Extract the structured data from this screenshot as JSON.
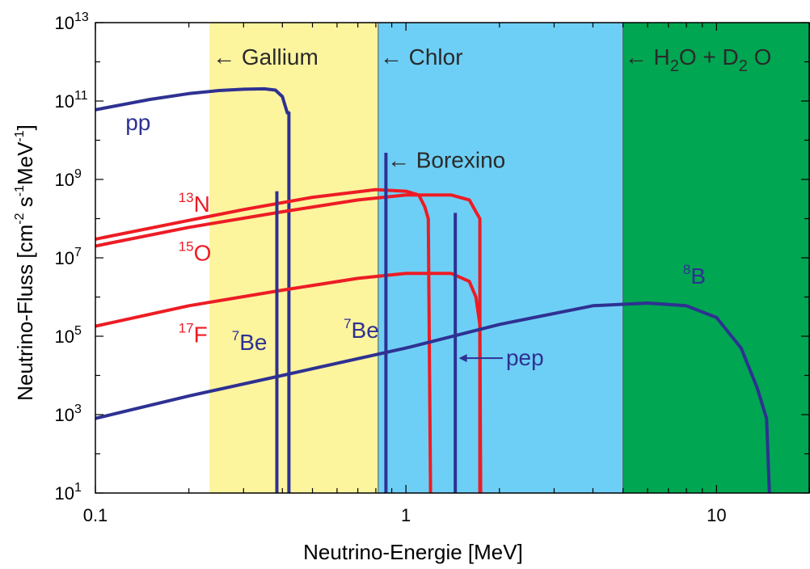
{
  "chart_data": {
    "type": "line",
    "title": "",
    "xlabel": "Neutrino-Energie [MeV]",
    "ylabel": {
      "base": "Neutrino-Fluss [cm",
      "e1": "-2",
      "s": " s",
      "e2": "-1",
      "mev": "MeV",
      "e3": "-1",
      "close": "]"
    },
    "x_scale": "log",
    "y_scale": "log",
    "xlim": [
      0.1,
      20
    ],
    "ylim": [
      10,
      10000000000000.0
    ],
    "x_ticks": [
      {
        "value": 0.1,
        "label": "0.1"
      },
      {
        "value": 1,
        "label": "1"
      },
      {
        "value": 10,
        "label": "10"
      }
    ],
    "y_ticks": [
      {
        "value": 10,
        "label": "10",
        "exp": "1"
      },
      {
        "value": 1000,
        "label": "10",
        "exp": "3"
      },
      {
        "value": 100000,
        "label": "10",
        "exp": "5"
      },
      {
        "value": 10000000,
        "label": "10",
        "exp": "7"
      },
      {
        "value": 1000000000,
        "label": "10",
        "exp": "9"
      },
      {
        "value": 100000000000,
        "label": "10",
        "exp": "11"
      },
      {
        "value": 10000000000000,
        "label": "10",
        "exp": "13"
      }
    ],
    "grid": false,
    "regions": [
      {
        "label": "← Gallium",
        "x_start": 0.233,
        "x_end": 0.814,
        "color": "#fdf49e"
      },
      {
        "label": "← Chlor",
        "x_start": 0.814,
        "x_end": 5.0,
        "color": "#6ecff6"
      },
      {
        "label": {
          "a": "← H",
          "s1": "2",
          "b": "O  + D",
          "s2": "2",
          "c": " O"
        },
        "x_start": 5.0,
        "x_end": 20,
        "color": "#00a651"
      }
    ],
    "series": [
      {
        "name": "pp",
        "color": "#2e3192",
        "points": [
          [
            0.1,
            60000000000.0
          ],
          [
            0.15,
            110000000000.0
          ],
          [
            0.2,
            155000000000.0
          ],
          [
            0.25,
            185000000000.0
          ],
          [
            0.3,
            200000000000.0
          ],
          [
            0.35,
            205000000000.0
          ],
          [
            0.38,
            190000000000.0
          ],
          [
            0.4,
            130000000000.0
          ],
          [
            0.415,
            50000000000.0
          ],
          [
            0.42,
            50000000000.0
          ],
          [
            0.42,
            10
          ]
        ]
      },
      {
        "name": "13N",
        "color": "#ed1c24",
        "points": [
          [
            0.1,
            30000000.0
          ],
          [
            0.2,
            90000000.0
          ],
          [
            0.3,
            170000000.0
          ],
          [
            0.5,
            350000000.0
          ],
          [
            0.8,
            550000000.0
          ],
          [
            1.0,
            500000000.0
          ],
          [
            1.1,
            400000000.0
          ],
          [
            1.15,
            200000000.0
          ],
          [
            1.18,
            100000000.0
          ],
          [
            1.2,
            10
          ]
        ]
      },
      {
        "name": "15O",
        "color": "#ed1c24",
        "points": [
          [
            0.1,
            20000000.0
          ],
          [
            0.2,
            60000000.0
          ],
          [
            0.4,
            150000000.0
          ],
          [
            0.7,
            300000000.0
          ],
          [
            1.0,
            400000000.0
          ],
          [
            1.4,
            400000000.0
          ],
          [
            1.6,
            300000000.0
          ],
          [
            1.68,
            150000000.0
          ],
          [
            1.73,
            100000000.0
          ],
          [
            1.73,
            10
          ]
        ]
      },
      {
        "name": "17F",
        "color": "#ed1c24",
        "points": [
          [
            0.1,
            180000.0
          ],
          [
            0.2,
            600000.0
          ],
          [
            0.4,
            1500000.0
          ],
          [
            0.7,
            3000000.0
          ],
          [
            1.0,
            4000000.0
          ],
          [
            1.4,
            4000000.0
          ],
          [
            1.6,
            2500000.0
          ],
          [
            1.68,
            1000000.0
          ],
          [
            1.73,
            200000.0
          ],
          [
            1.74,
            10
          ]
        ]
      },
      {
        "name": "8B",
        "color": "#2e3192",
        "points": [
          [
            0.1,
            800
          ],
          [
            0.2,
            3000
          ],
          [
            0.4,
            10000.0
          ],
          [
            1,
            50000.0
          ],
          [
            2,
            200000.0
          ],
          [
            4,
            600000.0
          ],
          [
            6,
            700000.0
          ],
          [
            8,
            600000.0
          ],
          [
            10,
            300000.0
          ],
          [
            12,
            50000.0
          ],
          [
            13.5,
            5000.0
          ],
          [
            14.5,
            800
          ],
          [
            14.8,
            10
          ]
        ]
      },
      {
        "name": "7Be",
        "color": "#2e3192",
        "points": [
          [
            0.384,
            10
          ],
          [
            0.384,
            500000000.0
          ]
        ]
      },
      {
        "name": "7Be",
        "color": "#2e3192",
        "points": [
          [
            0.862,
            10
          ],
          [
            0.862,
            4800000000.0
          ]
        ]
      },
      {
        "name": "pep",
        "color": "#2e3192",
        "points": [
          [
            1.442,
            10
          ],
          [
            1.442,
            140000000.0
          ]
        ]
      }
    ],
    "annotations": [
      {
        "id": "pp",
        "text": "pp",
        "color": "#2e3192",
        "x": 0.125,
        "y": 18000000000.0
      },
      {
        "id": "13N",
        "sup": "13",
        "text": "N",
        "color": "#ed1c24",
        "x": 0.185,
        "y": 150000000.0
      },
      {
        "id": "15O",
        "sup": "15",
        "text": "O",
        "color": "#ed1c24",
        "x": 0.185,
        "y": 8500000.0
      },
      {
        "id": "17F",
        "sup": "17",
        "text": "F",
        "color": "#ed1c24",
        "x": 0.185,
        "y": 70000.0
      },
      {
        "id": "7Be-left",
        "sup": "7",
        "text": "Be",
        "color": "#2e3192",
        "x": 0.275,
        "y": 45000.0
      },
      {
        "id": "7Be-right",
        "sup": "7",
        "text": "Be",
        "color": "#2e3192",
        "x": 0.63,
        "y": 90000.0
      },
      {
        "id": "8B",
        "sup": "8",
        "text": "B",
        "color": "#2e3192",
        "x": 7.8,
        "y": 2200000.0
      },
      {
        "id": "borexino",
        "text": "← Borexino",
        "color": "#2a2a2a",
        "x": 0.87,
        "y": 2000000000.0
      },
      {
        "id": "pep",
        "text": "pep",
        "color": "#2e3192",
        "x": 2.1,
        "y": 18000.0,
        "arrow_from": 2.05,
        "arrow_to": 1.48
      }
    ]
  }
}
